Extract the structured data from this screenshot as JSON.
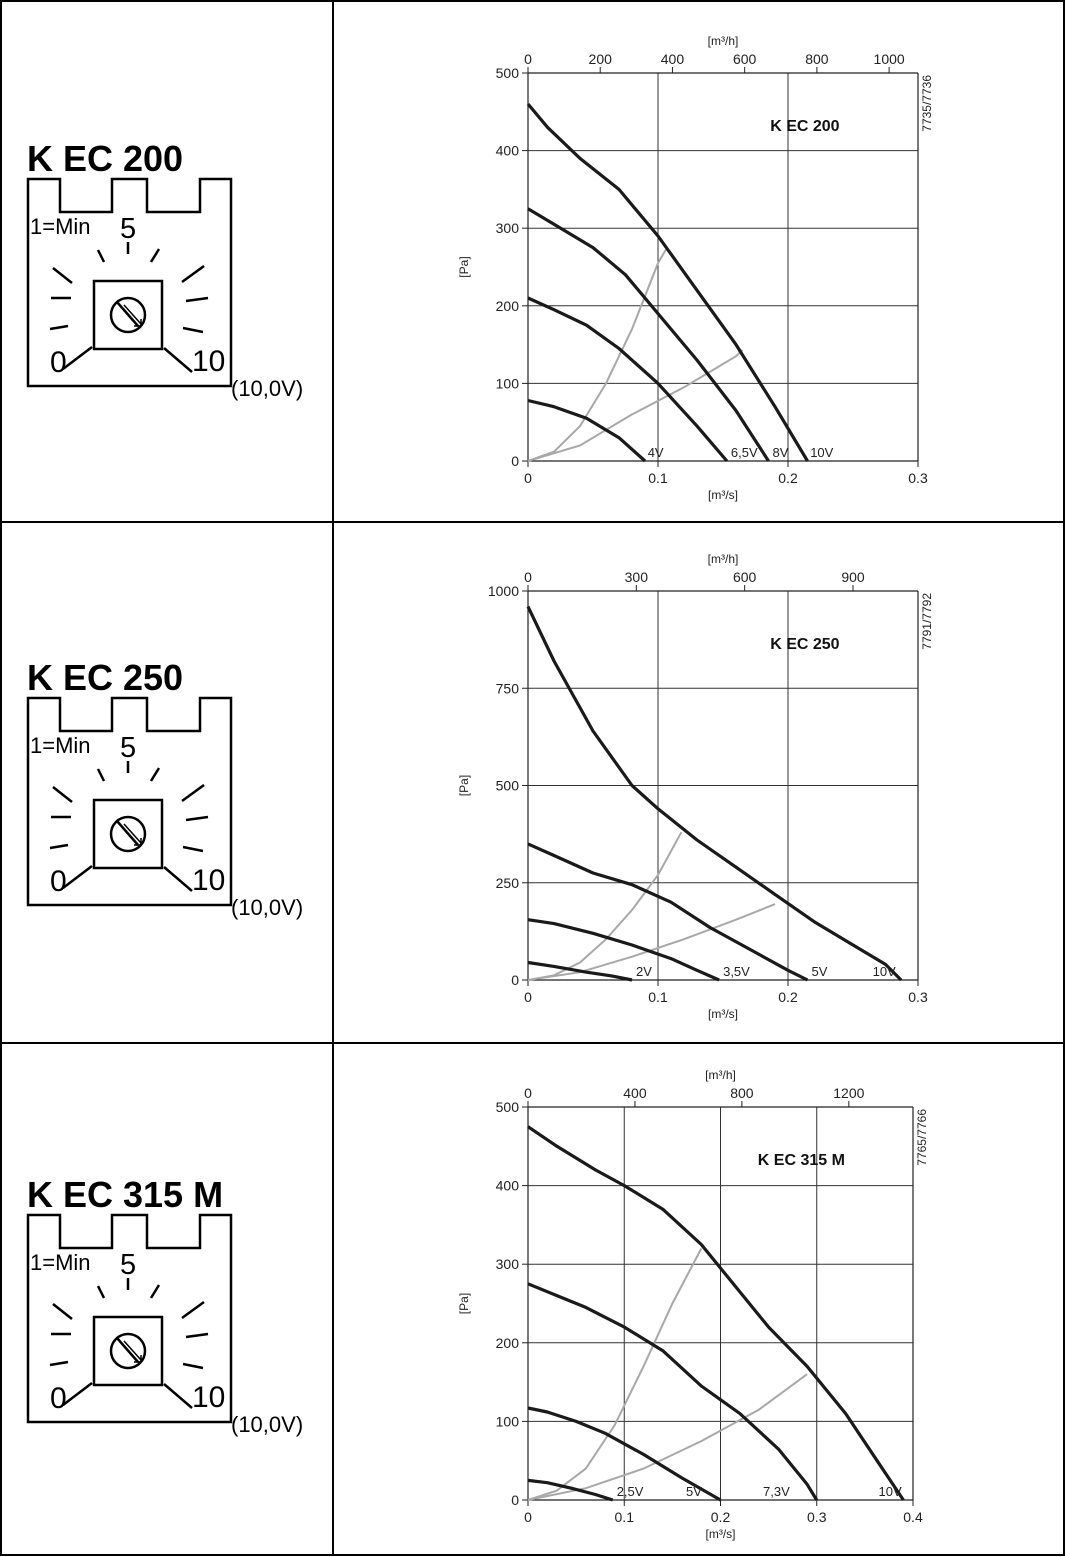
{
  "knob": {
    "min_label": "1=Min",
    "mid_label": "5",
    "zero_label": "0",
    "max_label": "10",
    "voltage_label": "(10,0V)"
  },
  "chart_data": [
    {
      "type": "line",
      "model": "K EC 200",
      "title": "K EC 200",
      "drawing_code": "7735/7736",
      "xlabel": "[m³/s]",
      "ylabel": "[Pa]",
      "top_xlabel": "[m³/h]",
      "xlim": [
        0,
        0.3
      ],
      "ylim": [
        0,
        500
      ],
      "xticks": [
        0,
        0.1,
        0.2,
        0.3
      ],
      "xtick_labels": [
        "0",
        "0.1",
        "0.2",
        "0.3"
      ],
      "yticks": [
        0,
        100,
        200,
        300,
        400,
        500
      ],
      "ytick_labels": [
        "0",
        "100",
        "200",
        "300",
        "400",
        "500"
      ],
      "top_ticks": [
        0,
        200,
        400,
        600,
        800,
        1000
      ],
      "top_tick_labels": [
        "0",
        "200",
        "400",
        "600",
        "800",
        "1000"
      ],
      "grid": true,
      "series": [
        {
          "name": "10V",
          "x": [
            0,
            0.015,
            0.04,
            0.07,
            0.1,
            0.13,
            0.16,
            0.19,
            0.215
          ],
          "y": [
            460,
            430,
            390,
            350,
            290,
            220,
            150,
            70,
            0
          ]
        },
        {
          "name": "8V",
          "x": [
            0,
            0.02,
            0.05,
            0.075,
            0.1,
            0.13,
            0.16,
            0.185
          ],
          "y": [
            325,
            305,
            275,
            240,
            190,
            130,
            65,
            0
          ]
        },
        {
          "name": "6,5V",
          "x": [
            0,
            0.02,
            0.045,
            0.07,
            0.1,
            0.13,
            0.153
          ],
          "y": [
            210,
            195,
            175,
            145,
            100,
            45,
            0
          ]
        },
        {
          "name": "4V",
          "x": [
            0,
            0.02,
            0.045,
            0.07,
            0.09
          ],
          "y": [
            78,
            70,
            55,
            30,
            0
          ]
        }
      ],
      "system_curves": [
        {
          "x": [
            0,
            0.02,
            0.04,
            0.06,
            0.08,
            0.1,
            0.107
          ],
          "y": [
            0,
            12,
            45,
            100,
            170,
            255,
            275
          ]
        },
        {
          "x": [
            0,
            0.04,
            0.08,
            0.12,
            0.16,
            0.165
          ],
          "y": [
            0,
            20,
            60,
            95,
            135,
            143
          ]
        }
      ],
      "curve_labels": [
        {
          "text": "4V",
          "x": 0.089
        },
        {
          "text": "6,5V",
          "x": 0.153
        },
        {
          "text": "8V",
          "x": 0.185
        },
        {
          "text": "10V",
          "x": 0.214
        }
      ]
    },
    {
      "type": "line",
      "model": "K EC 250",
      "title": "K EC 250",
      "drawing_code": "7791/7792",
      "xlabel": "[m³/s]",
      "ylabel": "[Pa]",
      "top_xlabel": "[m³/h]",
      "xlim": [
        0,
        0.3
      ],
      "ylim": [
        0,
        1000
      ],
      "xticks": [
        0,
        0.1,
        0.2,
        0.3
      ],
      "xtick_labels": [
        "0",
        "0.1",
        "0.2",
        "0.3"
      ],
      "yticks": [
        0,
        250,
        500,
        750,
        1000
      ],
      "ytick_labels": [
        "0",
        "250",
        "500",
        "750",
        "1000"
      ],
      "top_ticks": [
        0,
        300,
        600,
        900
      ],
      "top_tick_labels": [
        "0",
        "300",
        "600",
        "900"
      ],
      "grid": true,
      "series": [
        {
          "name": "10V",
          "x": [
            0,
            0.02,
            0.05,
            0.08,
            0.1,
            0.13,
            0.16,
            0.19,
            0.22,
            0.25,
            0.275,
            0.287
          ],
          "y": [
            960,
            820,
            640,
            500,
            440,
            360,
            290,
            220,
            150,
            90,
            40,
            0
          ]
        },
        {
          "name": "5V",
          "x": [
            0,
            0.02,
            0.05,
            0.08,
            0.11,
            0.14,
            0.17,
            0.2,
            0.215
          ],
          "y": [
            350,
            320,
            275,
            245,
            200,
            135,
            80,
            25,
            0
          ]
        },
        {
          "name": "3,5V",
          "x": [
            0,
            0.02,
            0.05,
            0.08,
            0.11,
            0.13,
            0.147
          ],
          "y": [
            155,
            145,
            120,
            90,
            55,
            25,
            0
          ]
        },
        {
          "name": "2V",
          "x": [
            0,
            0.02,
            0.045,
            0.065,
            0.08
          ],
          "y": [
            45,
            35,
            20,
            10,
            0
          ]
        }
      ],
      "system_curves": [
        {
          "x": [
            0,
            0.02,
            0.04,
            0.06,
            0.08,
            0.1,
            0.118
          ],
          "y": [
            0,
            12,
            45,
            105,
            180,
            270,
            380
          ]
        },
        {
          "x": [
            0,
            0.04,
            0.08,
            0.12,
            0.16,
            0.19
          ],
          "y": [
            0,
            20,
            60,
            105,
            155,
            195
          ]
        }
      ],
      "curve_labels": [
        {
          "text": "2V",
          "x": 0.08
        },
        {
          "text": "3,5V",
          "x": 0.147
        },
        {
          "text": "5V",
          "x": 0.215
        },
        {
          "text": "10V",
          "x": 0.262
        }
      ]
    },
    {
      "type": "line",
      "model": "K EC 315 M",
      "title": "K EC 315 M",
      "drawing_code": "7765/7766",
      "xlabel": "[m³/s]",
      "ylabel": "[Pa]",
      "top_xlabel": "[m³/h]",
      "xlim": [
        0,
        0.4
      ],
      "ylim": [
        0,
        500
      ],
      "xticks": [
        0,
        0.1,
        0.2,
        0.3,
        0.4
      ],
      "xtick_labels": [
        "0",
        "0.1",
        "0.2",
        "0.3",
        "0.4"
      ],
      "yticks": [
        0,
        100,
        200,
        300,
        400,
        500
      ],
      "ytick_labels": [
        "0",
        "100",
        "200",
        "300",
        "400",
        "500"
      ],
      "top_ticks": [
        0,
        400,
        800,
        1200
      ],
      "top_tick_labels": [
        "0",
        "400",
        "800",
        "1200"
      ],
      "grid": true,
      "series": [
        {
          "name": "10V",
          "x": [
            0,
            0.03,
            0.07,
            0.1,
            0.14,
            0.18,
            0.21,
            0.25,
            0.29,
            0.33,
            0.36,
            0.39
          ],
          "y": [
            475,
            450,
            420,
            400,
            370,
            325,
            280,
            220,
            170,
            110,
            55,
            0
          ]
        },
        {
          "name": "7,3V",
          "x": [
            0,
            0.03,
            0.06,
            0.1,
            0.14,
            0.18,
            0.22,
            0.26,
            0.29,
            0.3
          ],
          "y": [
            275,
            260,
            245,
            220,
            190,
            145,
            110,
            65,
            20,
            0
          ]
        },
        {
          "name": "5V",
          "x": [
            0,
            0.02,
            0.05,
            0.08,
            0.12,
            0.16,
            0.2
          ],
          "y": [
            117,
            112,
            100,
            85,
            58,
            28,
            0
          ]
        },
        {
          "name": "2,5V",
          "x": [
            0,
            0.02,
            0.045,
            0.07,
            0.088
          ],
          "y": [
            25,
            22,
            15,
            7,
            0
          ]
        }
      ],
      "system_curves": [
        {
          "x": [
            0,
            0.03,
            0.06,
            0.09,
            0.12,
            0.15,
            0.18
          ],
          "y": [
            0,
            12,
            40,
            95,
            170,
            250,
            320
          ]
        },
        {
          "x": [
            0,
            0.06,
            0.12,
            0.18,
            0.24,
            0.29
          ],
          "y": [
            0,
            15,
            40,
            75,
            115,
            160
          ]
        }
      ],
      "curve_labels": [
        {
          "text": "2,5V",
          "x": 0.088
        },
        {
          "text": "5V",
          "x": 0.16
        },
        {
          "text": "7,3V",
          "x": 0.24
        },
        {
          "text": "10V",
          "x": 0.36
        }
      ]
    }
  ]
}
